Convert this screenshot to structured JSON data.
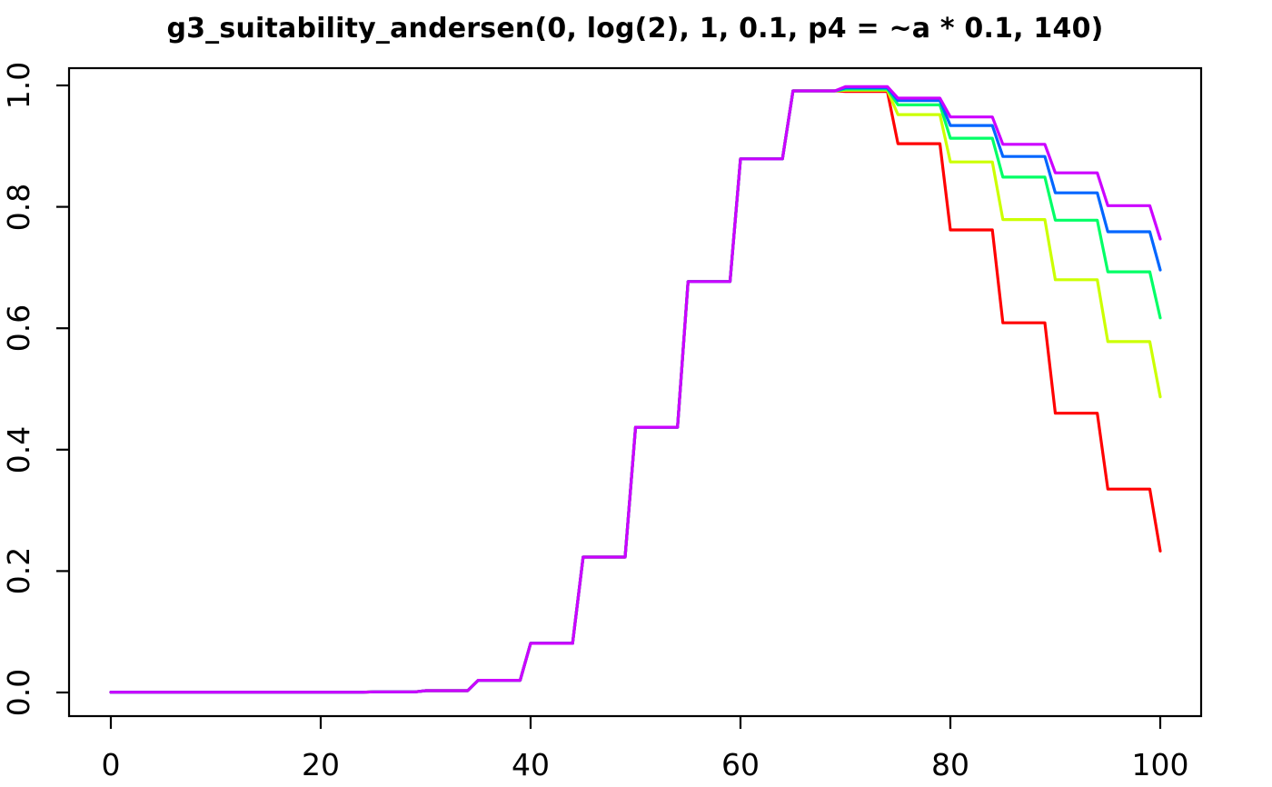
{
  "chart_data": {
    "type": "line",
    "title": "g3_suitability_andersen(0, log(2), 1, 0.1, p4 = ~a * 0.1, 140)",
    "xlabel": "",
    "ylabel": "",
    "xlim": [
      -4,
      104
    ],
    "ylim": [
      -0.04,
      1.04
    ],
    "grid": false,
    "legend": "none",
    "x_ticks": [
      "0",
      "20",
      "40",
      "60",
      "80",
      "100"
    ],
    "y_ticks": [
      "0.0",
      "0.2",
      "0.4",
      "0.6",
      "0.8",
      "1.0"
    ],
    "step_note": "values are constant on length bins [5k, 5k+4] with a linear segment from 5k+4 to 5k+5; arrays give the bin values for bins starting at 0,5,...,95 plus the final value at x=100",
    "bin_starts": [
      0,
      5,
      10,
      15,
      20,
      25,
      30,
      35,
      40,
      45,
      50,
      55,
      60,
      65,
      70,
      75,
      80,
      85,
      90,
      95,
      100
    ],
    "series": [
      {
        "name": "red",
        "color": "#FF0000",
        "values": [
          0.0005,
          0.0005,
          0.0005,
          0.0005,
          0.0005,
          0.001,
          0.003,
          0.02,
          0.081,
          0.223,
          0.437,
          0.677,
          0.879,
          0.991,
          0.99,
          0.904,
          0.762,
          0.609,
          0.46,
          0.335,
          0.233
        ]
      },
      {
        "name": "yellow-green",
        "color": "#CCFF00",
        "values": [
          0.0005,
          0.0005,
          0.0005,
          0.0005,
          0.0005,
          0.001,
          0.003,
          0.02,
          0.081,
          0.223,
          0.437,
          0.677,
          0.879,
          0.991,
          0.992,
          0.952,
          0.874,
          0.779,
          0.68,
          0.578,
          0.487
        ]
      },
      {
        "name": "green",
        "color": "#00FF66",
        "values": [
          0.0005,
          0.0005,
          0.0005,
          0.0005,
          0.0005,
          0.001,
          0.003,
          0.02,
          0.081,
          0.223,
          0.437,
          0.677,
          0.879,
          0.991,
          0.994,
          0.968,
          0.913,
          0.849,
          0.778,
          0.693,
          0.617
        ]
      },
      {
        "name": "blue",
        "color": "#0066FF",
        "values": [
          0.0005,
          0.0005,
          0.0005,
          0.0005,
          0.0005,
          0.001,
          0.003,
          0.02,
          0.081,
          0.223,
          0.437,
          0.677,
          0.879,
          0.991,
          0.996,
          0.975,
          0.934,
          0.883,
          0.823,
          0.759,
          0.696
        ]
      },
      {
        "name": "magenta",
        "color": "#CC00FF",
        "values": [
          0.0005,
          0.0005,
          0.0005,
          0.0005,
          0.0005,
          0.001,
          0.003,
          0.02,
          0.081,
          0.223,
          0.437,
          0.677,
          0.879,
          0.991,
          0.998,
          0.979,
          0.948,
          0.903,
          0.856,
          0.802,
          0.747
        ]
      }
    ],
    "axis_color": "#000000",
    "line_width": 3.2
  }
}
